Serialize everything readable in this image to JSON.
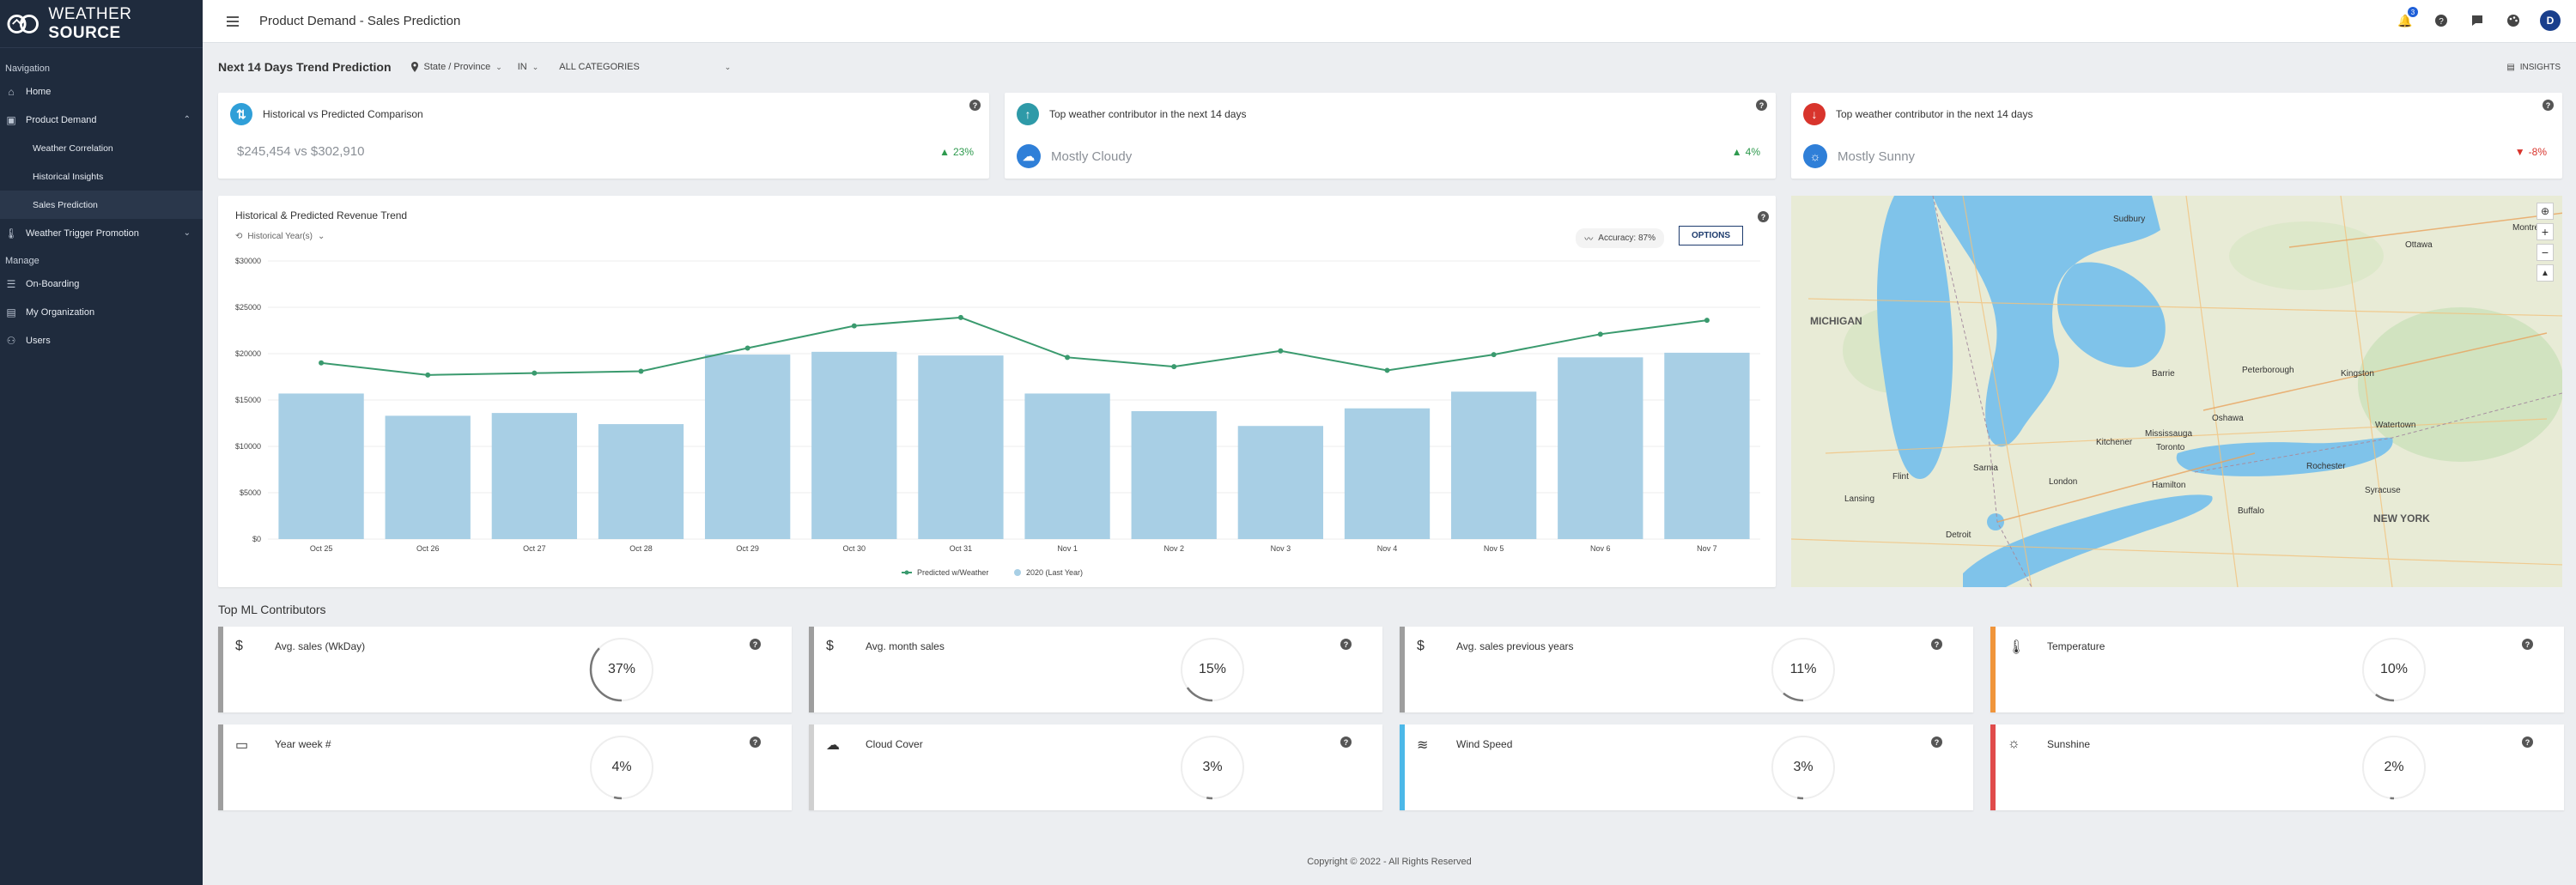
{
  "brand": {
    "light": "WEATHER",
    "bold": "SOURCE"
  },
  "sidebar": {
    "section_nav": "Navigation",
    "home": "Home",
    "product_demand": "Product Demand",
    "sub": [
      "Weather Correlation",
      "Historical Insights",
      "Sales Prediction"
    ],
    "weather_trigger": "Weather Trigger Promotion",
    "section_manage": "Manage",
    "onboarding": "On-Boarding",
    "my_org": "My Organization",
    "users": "Users"
  },
  "header": {
    "title": "Product Demand - Sales Prediction",
    "notif_count": "3",
    "avatar": "D"
  },
  "filters": {
    "title": "Next 14 Days Trend Prediction",
    "region_type": "State / Province",
    "region": "IN",
    "category": "ALL CATEGORIES",
    "insights": "INSIGHTS"
  },
  "kpis": [
    {
      "title": "Historical vs Predicted Comparison",
      "value": "$245,454 vs $302,910",
      "change": "23%",
      "direction": "up",
      "icon": "compare-icon",
      "color": "#2f9fd8"
    },
    {
      "title": "Top weather contributor in the next 14 days",
      "value": "Mostly Cloudy",
      "change": "4%",
      "direction": "up",
      "icon": "arrow-up-icon",
      "color": "#2e9aa8"
    },
    {
      "title": "Top weather contributor in the next 14 days",
      "value": "Mostly Sunny",
      "change": "-8%",
      "direction": "down",
      "icon": "arrow-down-icon",
      "color": "#d8342c"
    }
  ],
  "chart_card": {
    "historical_sel": "Historical Year(s)",
    "accuracy": "Accuracy: 87%",
    "options": "OPTIONS"
  },
  "chart_data": {
    "type": "bar",
    "title": "Historical & Predicted Revenue Trend",
    "categories": [
      "Oct 25",
      "Oct 26",
      "Oct 27",
      "Oct 28",
      "Oct 29",
      "Oct 30",
      "Oct 31",
      "Nov 1",
      "Nov 2",
      "Nov 3",
      "Nov 4",
      "Nov 5",
      "Nov 6",
      "Nov 7"
    ],
    "y_ticks": [
      "$0",
      "$5000",
      "$10000",
      "$15000",
      "$20000",
      "$25000",
      "$30000"
    ],
    "ylim": [
      0,
      30000
    ],
    "series": [
      {
        "name": "Predicted w/Weather",
        "type": "line",
        "color": "#3a9a6e",
        "values": [
          19000,
          17700,
          17900,
          18100,
          20600,
          23000,
          23900,
          19600,
          18600,
          20300,
          18200,
          19900,
          22100,
          23600
        ]
      },
      {
        "name": "2020 (Last Year)",
        "type": "bar",
        "color": "#a8cfe5",
        "values": [
          15700,
          13300,
          13600,
          12400,
          19900,
          20200,
          19800,
          15700,
          13800,
          12200,
          14100,
          15900,
          19600,
          20100
        ]
      }
    ]
  },
  "map_labels": {
    "michigan": "MICHIGAN",
    "new_york": "NEW YORK",
    "cities": [
      "Toronto",
      "Ottawa",
      "Detroit",
      "Buffalo",
      "Rochester",
      "Syracuse",
      "Lansing",
      "London",
      "Kitchener",
      "Montréal",
      "Kingston",
      "Peterborough",
      "Flint",
      "Sarnia",
      "Hamilton",
      "Mississauga",
      "Oshawa",
      "Barrie",
      "Sudbury",
      "Watertown"
    ]
  },
  "contributors_title": "Top ML Contributors",
  "contributors": [
    {
      "label": "Avg. sales (WkDay)",
      "value": "37%",
      "pct": 37,
      "color": "#9e9e9e",
      "icon": "dollar-icon",
      "glyph": "$"
    },
    {
      "label": "Avg. month sales",
      "value": "15%",
      "pct": 15,
      "color": "#9e9e9e",
      "icon": "dollar-icon",
      "glyph": "$"
    },
    {
      "label": "Avg. sales previous years",
      "value": "11%",
      "pct": 11,
      "color": "#9e9e9e",
      "icon": "dollar-icon",
      "glyph": "$"
    },
    {
      "label": "Temperature",
      "value": "10%",
      "pct": 10,
      "color": "#f0953b",
      "icon": "thermometer-icon",
      "glyph": "🌡"
    },
    {
      "label": "Year week #",
      "value": "4%",
      "pct": 4,
      "color": "#9e9e9e",
      "icon": "calendar-icon",
      "glyph": "▭"
    },
    {
      "label": "Cloud Cover",
      "value": "3%",
      "pct": 3,
      "color": "#d0d0d0",
      "icon": "cloud-icon",
      "glyph": "☁"
    },
    {
      "label": "Wind Speed",
      "value": "3%",
      "pct": 3,
      "color": "#4cb8e8",
      "icon": "wind-icon",
      "glyph": "≋"
    },
    {
      "label": "Sunshine",
      "value": "2%",
      "pct": 2,
      "color": "#e04b4b",
      "icon": "sun-icon",
      "glyph": "☼"
    }
  ],
  "footer": "Copyright © 2022 - All Rights Reserved"
}
